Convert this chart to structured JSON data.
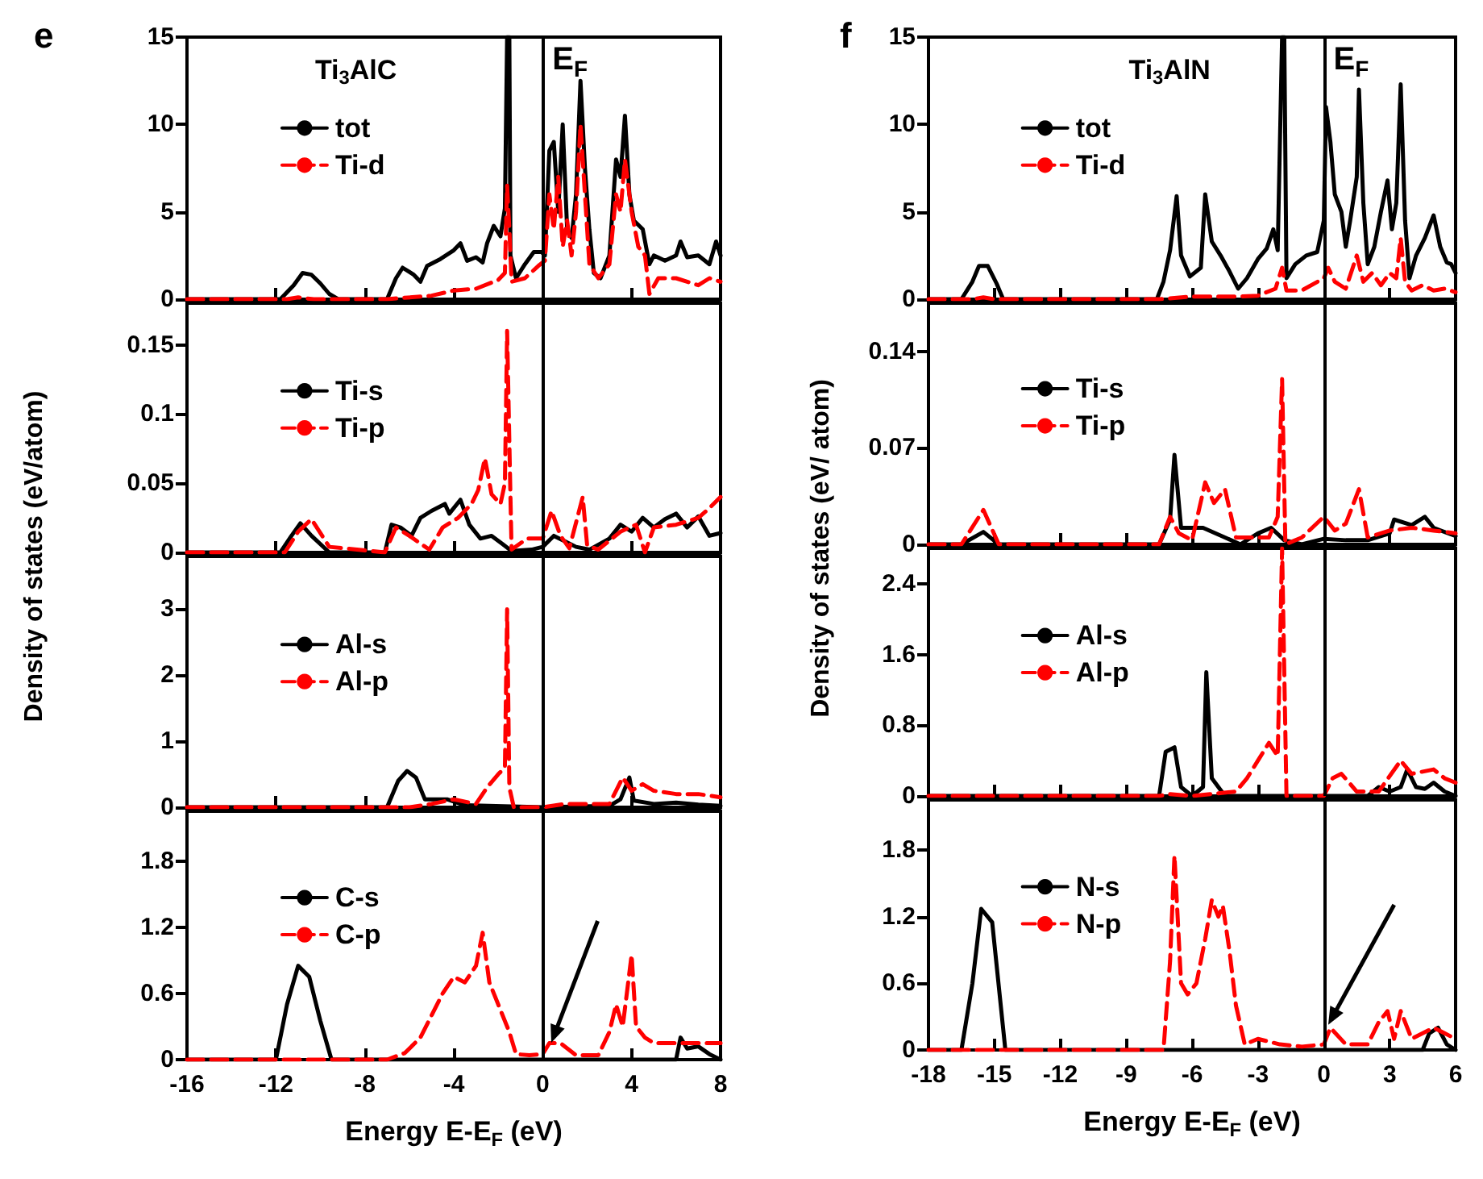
{
  "chart_data": [
    {
      "type": "line",
      "title": "e",
      "annotations": [
        "Ti$_{3}$AlC"
      ],
      "xlim": [
        -16,
        8
      ],
      "xticks": [
        -16,
        -12,
        -8,
        -4,
        0,
        4,
        8
      ],
      "ylim": [
        0,
        15
      ],
      "yticks": [
        0,
        5,
        10,
        15
      ],
      "tick_labels": "y",
      "legend": "top left",
      "ref_lines": [
        {
          "axis": "x",
          "value": 0,
          "label": "E$_{F}$",
          "color": "#000000"
        }
      ],
      "series": [
        {
          "name": "tot",
          "color": "#000000",
          "line_style": "solid",
          "x": [
            -16,
            -11.8,
            -11.2,
            -10.8,
            -10.4,
            -10,
            -9.6,
            -9.2,
            -7,
            -6.6,
            -6.3,
            -5.8,
            -5.5,
            -5.2,
            -4.6,
            -4,
            -3.7,
            -3.4,
            -3,
            -2.7,
            -2.5,
            -2.2,
            -1.9,
            -1.7,
            -1.6,
            -1.5,
            -1.45,
            -1.2,
            -0.8,
            -0.4,
            -0.05,
            0.1,
            0.3,
            0.5,
            0.7,
            0.9,
            1.1,
            1.3,
            1.5,
            1.7,
            1.9,
            2.1,
            2.3,
            2.6,
            3,
            3.3,
            3.5,
            3.7,
            3.9,
            4.1,
            4.5,
            4.8,
            5,
            5.5,
            6,
            6.2,
            6.5,
            7,
            7.5,
            7.8,
            8
          ],
          "values": [
            0,
            0,
            0.8,
            1.5,
            1.4,
            0.9,
            0.3,
            0,
            0,
            1.2,
            1.8,
            1.4,
            1,
            1.9,
            2.3,
            2.8,
            3.2,
            2.2,
            2.4,
            2.1,
            3.2,
            4.2,
            3.6,
            5.2,
            15,
            15,
            2.5,
            1.2,
            2,
            2.7,
            2.7,
            2.5,
            8.5,
            9,
            5,
            10,
            4,
            3.5,
            6,
            12.5,
            7.5,
            4,
            1.5,
            1.2,
            2.5,
            8,
            7,
            10.5,
            6,
            4.5,
            4,
            2,
            2.5,
            2.2,
            2.5,
            3.3,
            2.4,
            2.5,
            2,
            3.3,
            2.5
          ]
        },
        {
          "name": "Ti-d",
          "color": "#ff0000",
          "line_style": "dashed",
          "x": [
            -16,
            -11.5,
            -11,
            -10.3,
            -7,
            -5,
            -4,
            -3,
            -2,
            -1.7,
            -1.6,
            -1.5,
            -1.4,
            -0.8,
            -0.2,
            0.1,
            0.3,
            0.5,
            0.7,
            0.9,
            1.1,
            1.3,
            1.5,
            1.7,
            1.9,
            2.1,
            2.5,
            3,
            3.3,
            3.5,
            3.7,
            4,
            4.3,
            4.6,
            4.8,
            5.2,
            6,
            7,
            7.5,
            8
          ],
          "values": [
            0,
            0,
            0.1,
            0,
            0,
            0.2,
            0.5,
            0.6,
            1.1,
            1.5,
            6.5,
            4,
            1,
            1.2,
            1.9,
            2.2,
            6,
            4,
            7,
            3,
            4.5,
            2.5,
            5,
            10,
            6,
            2,
            1.2,
            2,
            6,
            5,
            8,
            5,
            3,
            2.5,
            0.3,
            1.2,
            1.2,
            0.8,
            1.2,
            1
          ]
        }
      ]
    },
    {
      "type": "line",
      "xlim": [
        -16,
        8
      ],
      "xticks": [
        -16,
        -12,
        -8,
        -4,
        0,
        4,
        8
      ],
      "ylim": [
        0,
        0.18
      ],
      "yticks": [
        0,
        0.05,
        0.1,
        0.15
      ],
      "tick_labels": "y",
      "legend": "top left",
      "ref_lines": [
        {
          "axis": "x",
          "value": 0,
          "color": "#000000"
        }
      ],
      "series": [
        {
          "name": "Ti-s",
          "color": "#000000",
          "line_style": "solid",
          "x": [
            -16,
            -11.8,
            -11.3,
            -10.9,
            -10.4,
            -9.6,
            -7.1,
            -6.8,
            -6.4,
            -5.9,
            -5.5,
            -5,
            -4.4,
            -4.2,
            -3.7,
            -3.3,
            -2.8,
            -2.3,
            -1.8,
            -1.4,
            -0.5,
            0,
            0.5,
            1,
            1.5,
            2.1,
            3,
            3.5,
            4,
            4.5,
            5,
            5.5,
            6,
            6.5,
            7,
            7.5,
            8
          ],
          "values": [
            0,
            0,
            0.012,
            0.021,
            0.012,
            0,
            0,
            0.02,
            0.018,
            0.012,
            0.025,
            0.03,
            0.035,
            0.028,
            0.038,
            0.02,
            0.01,
            0.012,
            0.006,
            0.001,
            0.002,
            0.004,
            0.012,
            0.008,
            0.004,
            0.002,
            0.01,
            0.02,
            0.015,
            0.025,
            0.018,
            0.024,
            0.028,
            0.018,
            0.026,
            0.012,
            0.014
          ]
        },
        {
          "name": "Ti-p",
          "color": "#ff0000",
          "line_style": "dashed",
          "x": [
            -16,
            -11.6,
            -11,
            -10.4,
            -9.6,
            -7.1,
            -6.6,
            -6,
            -5.1,
            -4.5,
            -3.8,
            -3.2,
            -2.9,
            -2.6,
            -2.3,
            -1.9,
            -1.7,
            -1.6,
            -1.45,
            -1.4,
            -0.7,
            0,
            0.4,
            0.8,
            1.2,
            1.8,
            2,
            2.5,
            3.5,
            4.2,
            4.6,
            5,
            6,
            7,
            7.5,
            8
          ],
          "values": [
            0,
            0,
            0.015,
            0.024,
            0.004,
            0,
            0.018,
            0.012,
            0.002,
            0.018,
            0.025,
            0.035,
            0.045,
            0.068,
            0.042,
            0.035,
            0.05,
            0.16,
            0.04,
            0.002,
            0.01,
            0.01,
            0.03,
            0.012,
            0.003,
            0.04,
            0.005,
            0.002,
            0.015,
            0.02,
            0,
            0.018,
            0.02,
            0.025,
            0.032,
            0.04
          ]
        }
      ]
    },
    {
      "type": "line",
      "ylabel": "Density of states (eV/atom)",
      "xlim": [
        -16,
        8
      ],
      "xticks": [
        -16,
        -12,
        -8,
        -4,
        0,
        4,
        8
      ],
      "ylim": [
        0,
        3.8
      ],
      "yticks": [
        0,
        1,
        2,
        3
      ],
      "tick_labels": "y",
      "legend": "top left",
      "ref_lines": [
        {
          "axis": "x",
          "value": 0,
          "color": "#000000"
        }
      ],
      "series": [
        {
          "name": "Al-s",
          "color": "#000000",
          "line_style": "solid",
          "x": [
            -16,
            -7,
            -6.5,
            -6.1,
            -5.7,
            -5.3,
            -4.3,
            -3.5,
            0,
            3,
            3.5,
            3.9,
            4.1,
            5,
            6,
            7,
            8
          ],
          "values": [
            0,
            0,
            0.4,
            0.55,
            0.45,
            0.12,
            0.12,
            0.03,
            0,
            0.02,
            0.12,
            0.45,
            0.1,
            0.05,
            0.07,
            0.04,
            0.02
          ]
        },
        {
          "name": "Al-p",
          "color": "#ff0000",
          "line_style": "dashed",
          "x": [
            -16,
            -6,
            -5,
            -4,
            -3,
            -2.5,
            -2,
            -1.7,
            -1.6,
            -1.5,
            -1.3,
            0,
            1,
            2,
            3,
            3.6,
            4,
            4.5,
            5,
            6,
            7,
            8
          ],
          "values": [
            0,
            0,
            0.05,
            0.12,
            0.05,
            0.3,
            0.5,
            0.6,
            3,
            0.3,
            0,
            0,
            0.05,
            0.05,
            0.05,
            0.45,
            0.25,
            0.35,
            0.25,
            0.2,
            0.2,
            0.15
          ]
        }
      ]
    },
    {
      "type": "line",
      "xlabel": "Energy E-E$_{F}$ (eV)",
      "xlim": [
        -16,
        8
      ],
      "xticks": [
        -16,
        -12,
        -8,
        -4,
        0,
        4,
        8
      ],
      "ylim": [
        0,
        2.25
      ],
      "yticks": [
        0,
        0.6,
        1.2,
        1.8
      ],
      "legend": "top left",
      "ref_lines": [
        {
          "axis": "x",
          "value": 0,
          "color": "#000000"
        }
      ],
      "series": [
        {
          "name": "C-s",
          "color": "#000000",
          "line_style": "solid",
          "x": [
            -16,
            -12,
            -11.5,
            -11,
            -10.5,
            -10,
            -9.5,
            0,
            6,
            6.2,
            6.5,
            7,
            7.5,
            8
          ],
          "values": [
            0,
            0,
            0.5,
            0.85,
            0.75,
            0.35,
            0,
            0,
            0,
            0.2,
            0.1,
            0.12,
            0.05,
            0
          ]
        },
        {
          "name": "C-p",
          "color": "#ff0000",
          "line_style": "dashed",
          "x": [
            -16,
            -7,
            -6.2,
            -5.5,
            -5,
            -4.5,
            -4,
            -3.5,
            -3,
            -2.7,
            -2.4,
            -2,
            -1.5,
            -1.2,
            -0.6,
            0,
            0.3,
            0.8,
            1.5,
            2.5,
            3,
            3.3,
            3.6,
            4,
            4.2,
            4.6,
            5,
            6,
            7,
            8
          ],
          "values": [
            0,
            0,
            0.06,
            0.2,
            0.4,
            0.6,
            0.75,
            0.7,
            0.85,
            1.15,
            0.7,
            0.5,
            0.25,
            0.05,
            0.04,
            0.05,
            0.15,
            0.15,
            0.04,
            0.04,
            0.25,
            0.5,
            0.3,
            0.95,
            0.3,
            0.2,
            0.15,
            0.15,
            0.15,
            0.15
          ]
        }
      ]
    },
    {
      "type": "line",
      "title": "f",
      "annotations": [
        "Ti$_{3}$AlN"
      ],
      "xlim": [
        -18,
        6
      ],
      "xticks": [
        -18,
        -15,
        -12,
        -9,
        -6,
        -3,
        0,
        3,
        6
      ],
      "ylim": [
        0,
        15
      ],
      "yticks": [
        0,
        5,
        10,
        15
      ],
      "tick_labels": "y",
      "legend": "top left",
      "ref_lines": [
        {
          "axis": "x",
          "value": 0,
          "label": "E$_{F}$",
          "color": "#000000"
        }
      ],
      "series": [
        {
          "name": "tot",
          "color": "#000000",
          "line_style": "solid",
          "x": [
            -18,
            -16.5,
            -16,
            -15.7,
            -15.3,
            -14.9,
            -14.6,
            -7.6,
            -7.3,
            -7,
            -6.7,
            -6.5,
            -6.1,
            -5.6,
            -5.4,
            -5.1,
            -4.7,
            -4.3,
            -3.9,
            -3.5,
            -3,
            -2.6,
            -2.3,
            -2.1,
            -1.9,
            -1.8,
            -1.7,
            -1.3,
            -0.8,
            -0.3,
            0,
            0.1,
            0.3,
            0.5,
            0.8,
            1,
            1.2,
            1.5,
            1.6,
            1.8,
            2,
            2.3,
            2.6,
            2.9,
            3.1,
            3.3,
            3.5,
            3.7,
            3.9,
            4.2,
            4.6,
            5,
            5.3,
            5.6,
            5.8,
            6
          ],
          "values": [
            0,
            0,
            1,
            1.9,
            1.9,
            0.9,
            0,
            0,
            1,
            2.8,
            5.9,
            2.5,
            1.3,
            1.8,
            6,
            3.3,
            2.5,
            1.6,
            0.6,
            1.2,
            2.3,
            2.9,
            4,
            2.8,
            15,
            15,
            1.2,
            2,
            2.5,
            2.7,
            4.5,
            11,
            9,
            6,
            5,
            3,
            4.5,
            7,
            12,
            5.5,
            2,
            3,
            5,
            6.8,
            4,
            5.5,
            12.3,
            4.5,
            1.2,
            2.5,
            3.5,
            4.8,
            3,
            2.1,
            2,
            1.5
          ]
        },
        {
          "name": "Ti-d",
          "color": "#ff0000",
          "line_style": "dashed",
          "x": [
            -18,
            -16,
            -15.5,
            -15,
            -7.5,
            -6,
            -4,
            -3,
            -2.2,
            -1.9,
            -1.7,
            -1,
            0,
            0.2,
            0.5,
            1,
            1.5,
            1.8,
            2.2,
            2.6,
            3,
            3.3,
            3.5,
            3.7,
            4,
            4.5,
            5,
            5.5,
            6
          ],
          "values": [
            0,
            0,
            0.1,
            0,
            0,
            0.15,
            0.15,
            0.2,
            0.6,
            1.8,
            0.5,
            0.5,
            1.2,
            1.8,
            1,
            0.6,
            2.5,
            1,
            1.5,
            0.8,
            1.5,
            1.2,
            3.5,
            1,
            0.5,
            0.8,
            0.5,
            0.6,
            0.4
          ]
        }
      ]
    },
    {
      "type": "line",
      "xlim": [
        -18,
        6
      ],
      "xticks": [
        -18,
        -15,
        -12,
        -9,
        -6,
        -3,
        0,
        3,
        6
      ],
      "ylim": [
        0,
        0.175
      ],
      "yticks": [
        0,
        0.07,
        0.14
      ],
      "tick_labels": "y",
      "legend": "top left",
      "ref_lines": [
        {
          "axis": "x",
          "value": 0,
          "color": "#000000"
        }
      ],
      "series": [
        {
          "name": "Ti-s",
          "color": "#000000",
          "line_style": "solid",
          "x": [
            -18,
            -16.5,
            -15.5,
            -14.8,
            -7.5,
            -7,
            -6.8,
            -6.5,
            -5.5,
            -4.5,
            -3.8,
            -3,
            -2.4,
            -1.8,
            -1,
            0,
            1,
            2,
            3,
            3.2,
            4,
            4.6,
            5,
            6
          ],
          "values": [
            0,
            0,
            0.009,
            0,
            0,
            0.018,
            0.065,
            0.012,
            0.012,
            0.005,
            0,
            0.008,
            0.012,
            0.003,
            0,
            0.004,
            0.003,
            0.003,
            0.008,
            0.018,
            0.014,
            0.02,
            0.012,
            0.006
          ]
        },
        {
          "name": "Ti-p",
          "color": "#ff0000",
          "line_style": "dashed",
          "x": [
            -18,
            -16.5,
            -15.5,
            -14.8,
            -7.5,
            -7,
            -6.6,
            -6,
            -5.4,
            -5,
            -4.5,
            -4,
            -2.5,
            -2.1,
            -1.9,
            -1.75,
            -1,
            0,
            0.5,
            1,
            1.6,
            2,
            3,
            4,
            5,
            6
          ],
          "values": [
            0,
            0,
            0.025,
            0,
            0,
            0.02,
            0.008,
            0.003,
            0.045,
            0.03,
            0.04,
            0.005,
            0.005,
            0.02,
            0.12,
            0,
            0.005,
            0.02,
            0.01,
            0.015,
            0.04,
            0.005,
            0.01,
            0.012,
            0.01,
            0.008
          ]
        }
      ]
    },
    {
      "type": "line",
      "ylabel": "Density of states (eV/ atom)",
      "xlim": [
        -18,
        6
      ],
      "xticks": [
        -18,
        -15,
        -12,
        -9,
        -6,
        -3,
        0,
        3,
        6
      ],
      "ylim": [
        0,
        2.8
      ],
      "yticks": [
        0,
        0.8,
        1.6,
        2.4
      ],
      "tick_labels": "y",
      "legend": "top left",
      "ref_lines": [
        {
          "axis": "x",
          "value": 0,
          "color": "#000000"
        }
      ],
      "series": [
        {
          "name": "Al-s",
          "color": "#000000",
          "line_style": "solid",
          "x": [
            -18,
            -7.5,
            -7.2,
            -6.8,
            -6.5,
            -6,
            -5.5,
            -5.35,
            -5.1,
            -4.5,
            0,
            2,
            2.5,
            3,
            3.5,
            3.8,
            4.2,
            4.6,
            5,
            5.5,
            6
          ],
          "values": [
            0,
            0,
            0.5,
            0.55,
            0.1,
            0,
            0.1,
            1.4,
            0.2,
            0,
            0,
            0,
            0.1,
            0.05,
            0.1,
            0.3,
            0.1,
            0.08,
            0.15,
            0.05,
            0
          ]
        },
        {
          "name": "Al-p",
          "color": "#ff0000",
          "line_style": "dashed",
          "x": [
            -18,
            -7.5,
            -7,
            -6,
            -4,
            -3.5,
            -3,
            -2.5,
            -2.1,
            -1.9,
            -1.7,
            0,
            0.4,
            0.8,
            1.5,
            2.5,
            3.5,
            4,
            5,
            5.5,
            6
          ],
          "values": [
            0,
            0,
            0.02,
            0,
            0.05,
            0.2,
            0.4,
            0.6,
            0.45,
            2.8,
            0,
            0,
            0.2,
            0.25,
            0.05,
            0.05,
            0.4,
            0.25,
            0.3,
            0.2,
            0.15
          ]
        }
      ]
    },
    {
      "type": "line",
      "xlabel": "Energy E-E$_{F}$ (eV)",
      "xlim": [
        -18,
        6
      ],
      "xticks": [
        -18,
        -15,
        -12,
        -9,
        -6,
        -3,
        0,
        3,
        6
      ],
      "ylim": [
        0,
        2.25
      ],
      "yticks": [
        0,
        0.6,
        1.2,
        1.8
      ],
      "legend": "top left",
      "ref_lines": [
        {
          "axis": "x",
          "value": 0,
          "color": "#000000"
        }
      ],
      "series": [
        {
          "name": "N-s",
          "color": "#000000",
          "line_style": "solid",
          "x": [
            -18,
            -16.5,
            -16,
            -15.6,
            -15.1,
            -14.5,
            0,
            4.5,
            4.8,
            5.2,
            5.6,
            6
          ],
          "values": [
            0,
            0,
            0.6,
            1.27,
            1.15,
            0,
            0,
            0,
            0.15,
            0.2,
            0.05,
            0
          ]
        },
        {
          "name": "N-p",
          "color": "#ff0000",
          "line_style": "dashed",
          "x": [
            -18,
            -7.3,
            -7,
            -6.8,
            -6.5,
            -6.2,
            -5.8,
            -5.4,
            -5.1,
            -4.8,
            -4.6,
            -4.3,
            -4,
            -3.6,
            -3,
            -2,
            -1,
            0,
            0.3,
            1,
            2,
            2.5,
            2.9,
            3.2,
            3.5,
            4,
            5,
            5.5,
            6
          ],
          "values": [
            0,
            0,
            0.8,
            1.75,
            0.6,
            0.5,
            0.6,
            1,
            1.35,
            1.2,
            1.3,
            0.9,
            0.4,
            0.05,
            0.1,
            0.05,
            0.03,
            0.05,
            0.2,
            0.05,
            0.05,
            0.25,
            0.35,
            0.1,
            0.35,
            0.1,
            0.2,
            0.15,
            0.1
          ]
        }
      ]
    }
  ]
}
